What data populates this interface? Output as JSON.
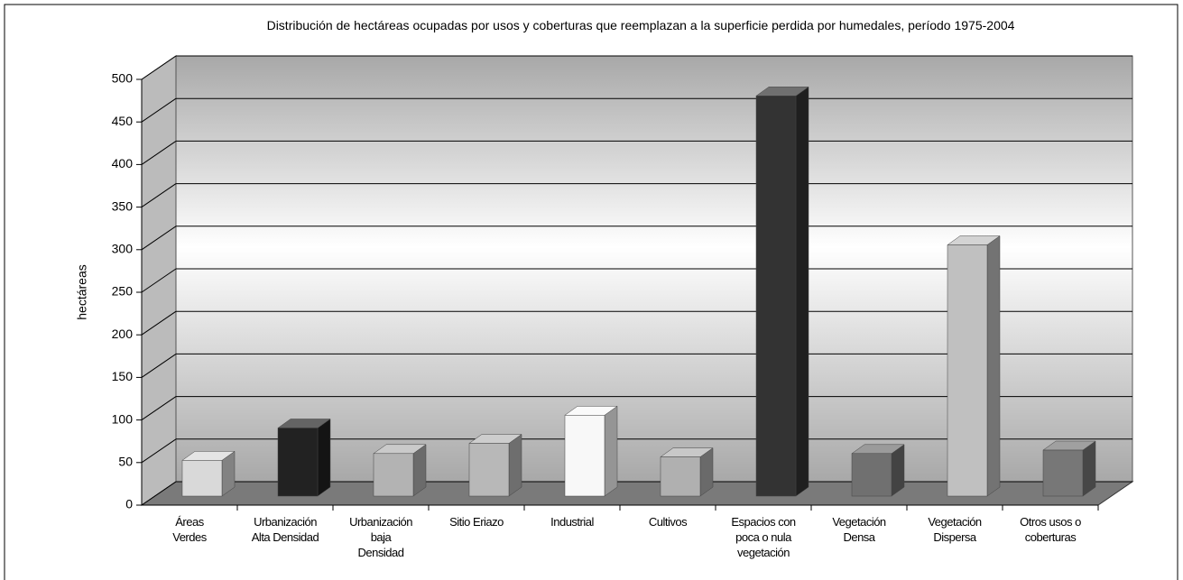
{
  "chart_data": {
    "type": "bar3d",
    "title": "Distribución de hectáreas ocupadas por usos y coberturas que reemplazan a la superficie perdida por humedales, período 1975-2004",
    "y_label": "hectáreas",
    "categories": [
      "Áreas\nVerdes",
      "Urbanización\nAlta Densidad",
      "Urbanización\nbaja\nDensidad",
      "Sitio Eriazo",
      "Industrial",
      "Cultivos",
      "Espacios con\npoca o nula\nvegetación",
      "Vegetación\nDensa",
      "Vegetación\nDispersa",
      "Otros usos o\ncoberturas"
    ],
    "values": [
      42,
      80,
      50,
      62,
      95,
      46,
      470,
      50,
      295,
      54
    ],
    "colors": [
      "#d9d9d9",
      "#222222",
      "#b3b3b3",
      "#b8b8b8",
      "#f8f8f8",
      "#b0b0b0",
      "#333333",
      "#707070",
      "#c0c0c0",
      "#777777"
    ],
    "ylim": [
      0,
      500
    ],
    "yticks": [
      0,
      50,
      100,
      150,
      200,
      250,
      300,
      350,
      400,
      450,
      500
    ],
    "grid": true
  }
}
